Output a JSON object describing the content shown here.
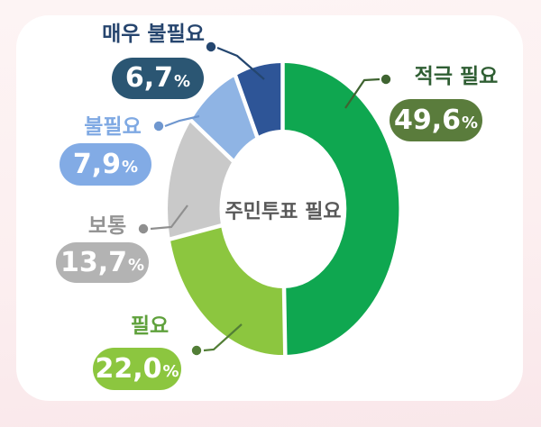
{
  "theme": {
    "background_top": "#fdf4f4",
    "background_bottom": "#f9e7ea",
    "card_background": "#ffffff",
    "center_text_color": "#595959",
    "pill_text_color": "#ffffff",
    "separator_color": "#ffffff"
  },
  "chart_data": {
    "type": "pie",
    "subtype": "donut",
    "center_label": "주민투표 필요",
    "unit": "%",
    "start_angle_deg": 0,
    "direction": "clockwise",
    "series": [
      {
        "label": "적극 필요",
        "value": 49.6,
        "display": "49,6",
        "segment_color": "#0FA750",
        "pill_color": "#5A7C3C",
        "label_color": "#2F5E33",
        "connector_color": "#3F6431"
      },
      {
        "label": "필요",
        "value": 22.0,
        "display": "22,0",
        "segment_color": "#8CC63F",
        "pill_color": "#8CC63F",
        "label_color": "#5FA13C",
        "connector_color": "#527E36"
      },
      {
        "label": "보통",
        "value": 13.7,
        "display": "13,7",
        "segment_color": "#C9C9C9",
        "pill_color": "#B3B3B3",
        "label_color": "#949494",
        "connector_color": "#8F8F8F"
      },
      {
        "label": "불필요",
        "value": 7.9,
        "display": "7,9",
        "segment_color": "#8FB4E4",
        "pill_color": "#82ABE5",
        "label_color": "#7FA9E3",
        "connector_color": "#6F97CF"
      },
      {
        "label": "매우 불필요",
        "value": 6.7,
        "display": "6,7",
        "segment_color": "#2E5597",
        "pill_color": "#2B5673",
        "label_color": "#26456E",
        "connector_color": "#24466F"
      }
    ]
  }
}
